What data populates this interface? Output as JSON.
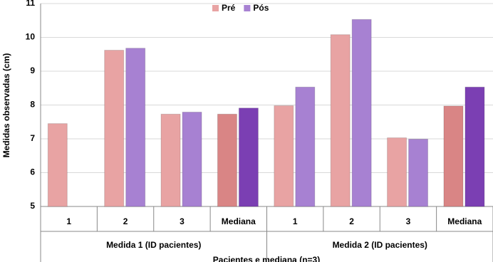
{
  "chart_data": {
    "type": "bar",
    "y_label": "Medidas observadas (cm)",
    "x_label": "Pacientes e mediana (n=3)",
    "groups": [
      {
        "name": "Medida 1 (ID pacientes)",
        "categories": [
          "1",
          "2",
          "3",
          "Mediana"
        ]
      },
      {
        "name": "Medida 2 (ID pacientes)",
        "categories": [
          "1",
          "2",
          "3",
          "Mediana"
        ]
      }
    ],
    "series": [
      {
        "name": "Pré",
        "color": "#e8a3a3",
        "colors": [
          "#e8a3a3",
          "#e8a3a3",
          "#e8a3a3",
          "#d98585",
          "#e8a3a3",
          "#e8a3a3",
          "#e8a3a3",
          "#d98585"
        ],
        "values": [
          7.45,
          9.62,
          7.73,
          7.73,
          7.98,
          10.08,
          7.03,
          7.97
        ]
      },
      {
        "name": "Pós",
        "color": "#a781d2",
        "colors": [
          "#a781d2",
          "#a781d2",
          "#a781d2",
          "#7b3fb3",
          "#a781d2",
          "#a781d2",
          "#a781d2",
          "#7b3fb3"
        ],
        "values": [
          null,
          9.68,
          7.79,
          7.91,
          8.53,
          10.53,
          6.99,
          8.53
        ]
      }
    ],
    "ylim": [
      5,
      11
    ],
    "yticks": [
      5,
      6,
      7,
      8,
      9,
      10,
      11
    ],
    "grid": true,
    "legend": "top"
  }
}
